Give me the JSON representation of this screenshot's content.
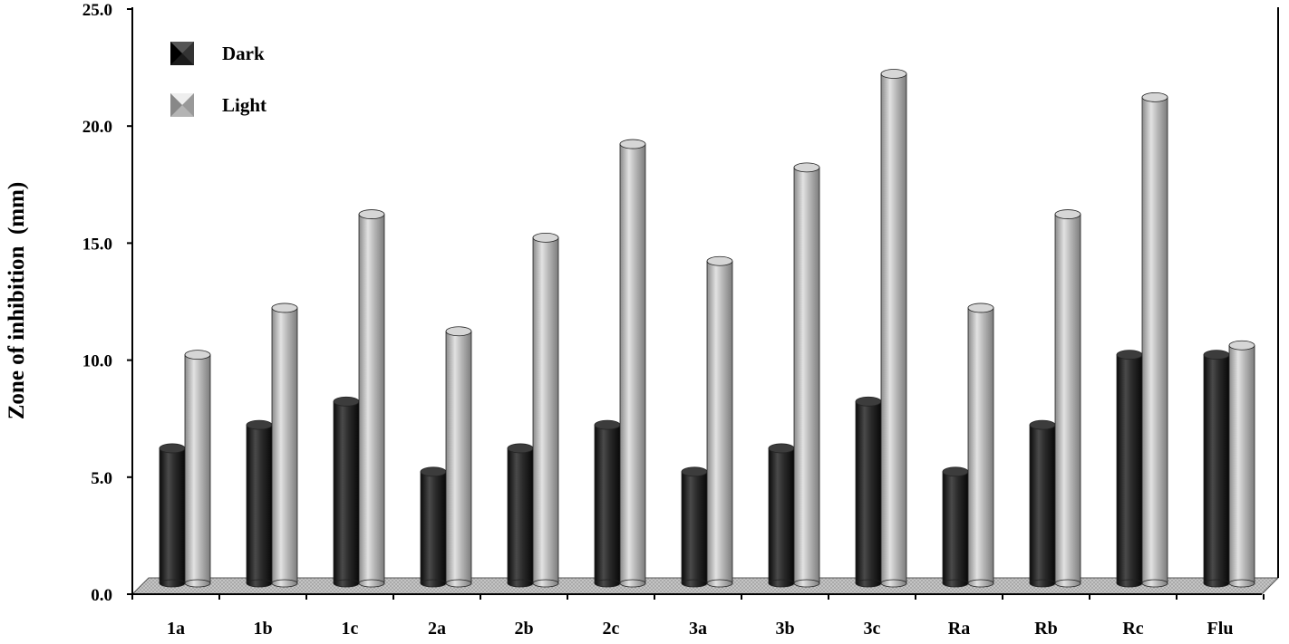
{
  "chart_data": {
    "type": "bar",
    "categories": [
      "1a",
      "1b",
      "1c",
      "2a",
      "2b",
      "2c",
      "3a",
      "3b",
      "3c",
      "Ra",
      "Rb",
      "Rc",
      "Flu"
    ],
    "series": [
      {
        "name": "Dark",
        "values": [
          6,
          7,
          8,
          5,
          6,
          7,
          5,
          6,
          8,
          5,
          7,
          10,
          10
        ]
      },
      {
        "name": "Light",
        "values": [
          10,
          12,
          16,
          11,
          15,
          19,
          14,
          18,
          22,
          12,
          16,
          21,
          10.4
        ]
      }
    ],
    "title": "",
    "xlabel": "",
    "ylabel": "Zone of inhibition  (mm)",
    "ylim": [
      0,
      25
    ],
    "yticks": [
      "0.0",
      "5.0",
      "10.0",
      "15.0",
      "20.0",
      "25.0"
    ],
    "grid": false,
    "legend_position": "top-left",
    "colors": {
      "Dark": "#262626",
      "Light": "#b4b4b4"
    }
  }
}
